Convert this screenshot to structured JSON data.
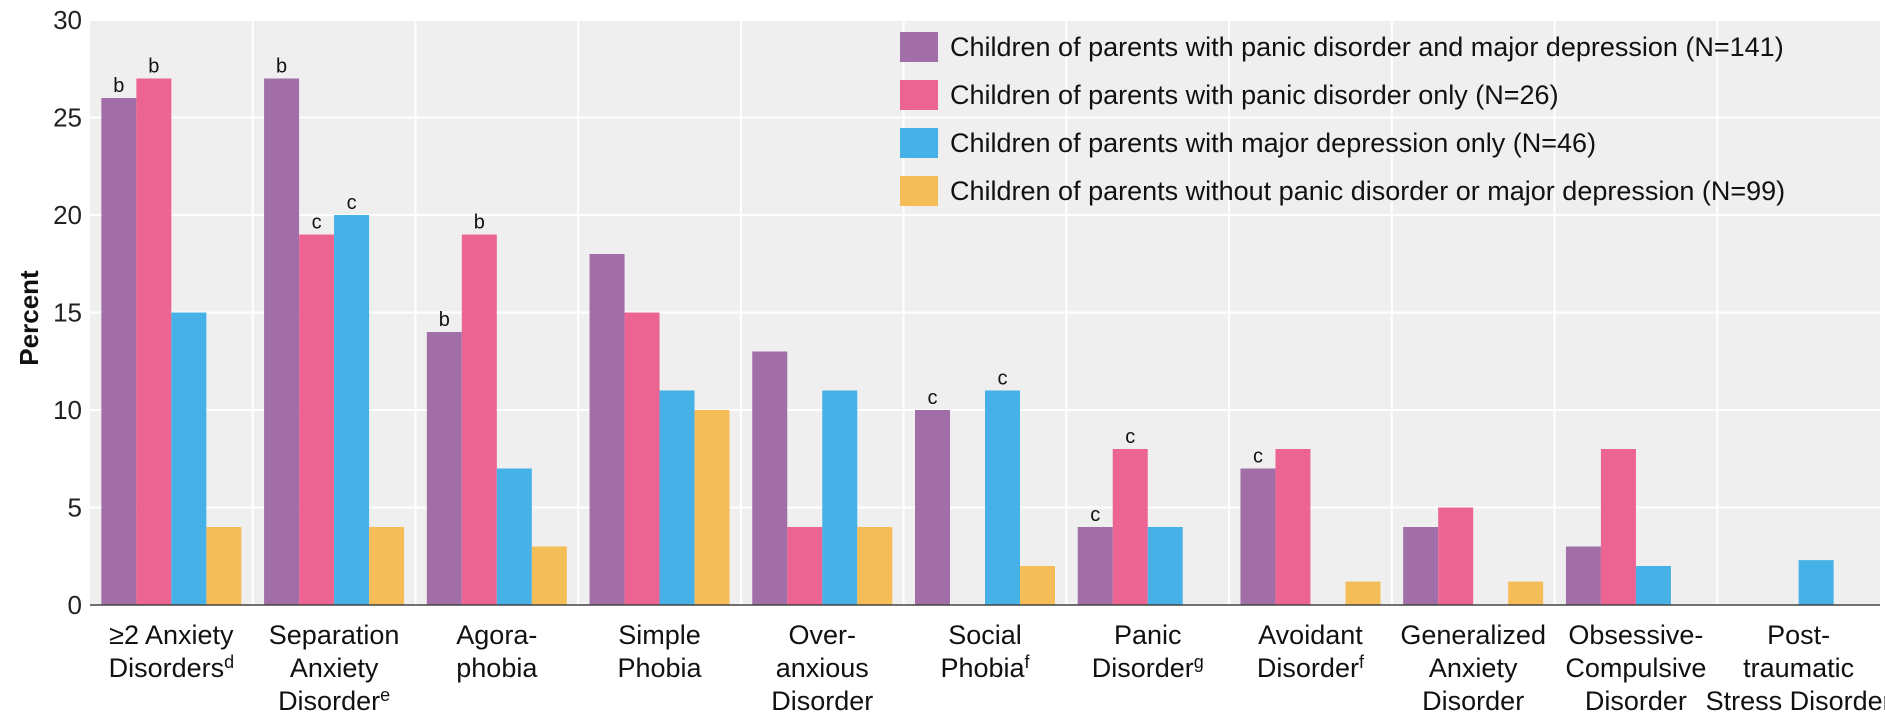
{
  "chart_data": {
    "type": "bar",
    "title": "",
    "xlabel": "",
    "ylabel": "Percent",
    "ylim": [
      0,
      30
    ],
    "yticks": [
      0,
      5,
      10,
      15,
      20,
      25,
      30
    ],
    "grid": true,
    "legend_position": "top-right",
    "categories": [
      {
        "lines": [
          "≥2 Anxiety",
          "Disorders"
        ],
        "sup": "d"
      },
      {
        "lines": [
          "Separation",
          "Anxiety",
          "Disorder"
        ],
        "sup": "e"
      },
      {
        "lines": [
          "Agora-",
          "phobia"
        ],
        "sup": ""
      },
      {
        "lines": [
          "Simple",
          "Phobia"
        ],
        "sup": ""
      },
      {
        "lines": [
          "Over-",
          "anxious",
          "Disorder"
        ],
        "sup": ""
      },
      {
        "lines": [
          "Social",
          "Phobia"
        ],
        "sup": "f"
      },
      {
        "lines": [
          "Panic",
          "Disorder"
        ],
        "sup": "g"
      },
      {
        "lines": [
          "Avoidant",
          "Disorder"
        ],
        "sup": "f"
      },
      {
        "lines": [
          "Generalized",
          "Anxiety",
          "Disorder"
        ],
        "sup": ""
      },
      {
        "lines": [
          "Obsessive-",
          "Compulsive",
          "Disorder"
        ],
        "sup": ""
      },
      {
        "lines": [
          "Post-",
          "traumatic",
          "Stress Disorder"
        ],
        "sup": ""
      }
    ],
    "series": [
      {
        "name": "Children of parents with panic disorder and major depression (N=141)",
        "color": "#a26ea8",
        "values": [
          26,
          27,
          14,
          18,
          13,
          10,
          4,
          7,
          4,
          3,
          0
        ],
        "labels": [
          "b",
          "b",
          "b",
          "",
          "",
          "c",
          "c",
          "c",
          "",
          "",
          ""
        ]
      },
      {
        "name": "Children of parents with panic disorder only (N=26)",
        "color": "#ec6592",
        "values": [
          27,
          19,
          19,
          15,
          4,
          0,
          8,
          8,
          5,
          8,
          0
        ],
        "labels": [
          "b",
          "c",
          "b",
          "",
          "",
          "",
          "c",
          "",
          "",
          "",
          ""
        ]
      },
      {
        "name": "Children of parents with major depression only (N=46)",
        "color": "#45b1e6",
        "values": [
          15,
          20,
          7,
          11,
          11,
          11,
          4,
          0,
          0,
          2,
          2.3
        ],
        "labels": [
          "",
          "c",
          "",
          "",
          "",
          "c",
          "",
          "",
          "",
          "",
          ""
        ]
      },
      {
        "name": "Children of parents without panic disorder or major depression (N=99)",
        "color": "#f5bd58",
        "values": [
          4,
          4,
          3,
          10,
          4,
          2,
          0,
          1.2,
          1.2,
          0,
          0
        ],
        "labels": [
          "",
          "",
          "",
          "",
          "",
          "",
          "",
          "",
          "",
          "",
          ""
        ]
      }
    ]
  }
}
